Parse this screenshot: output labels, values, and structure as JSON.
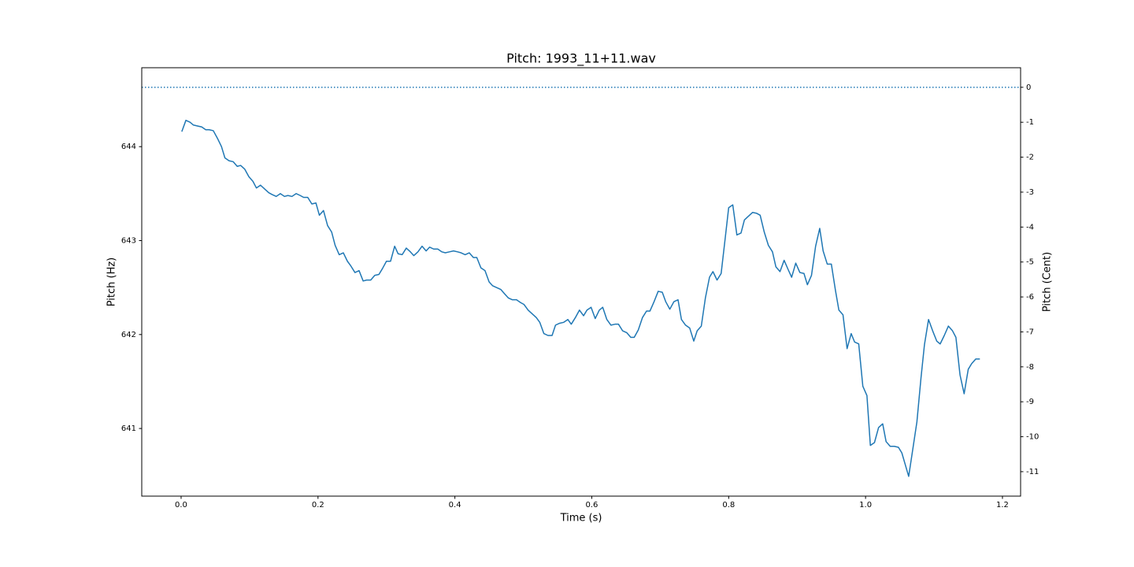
{
  "chart_data": {
    "type": "line",
    "title": "Pitch: 1993_11+11.wav",
    "x_label": "Time (s)",
    "y_label": "Pitch (Hz)",
    "y2_label": "Pitch (Cent)",
    "x": [
      0.001,
      0.007,
      0.013,
      0.018,
      0.024,
      0.03,
      0.036,
      0.041,
      0.047,
      0.053,
      0.059,
      0.064,
      0.07,
      0.076,
      0.082,
      0.087,
      0.093,
      0.099,
      0.105,
      0.11,
      0.116,
      0.122,
      0.128,
      0.133,
      0.139,
      0.145,
      0.151,
      0.156,
      0.162,
      0.168,
      0.174,
      0.179,
      0.185,
      0.191,
      0.197,
      0.202,
      0.208,
      0.214,
      0.22,
      0.225,
      0.231,
      0.237,
      0.243,
      0.248,
      0.254,
      0.26,
      0.266,
      0.271,
      0.277,
      0.283,
      0.289,
      0.294,
      0.3,
      0.306,
      0.312,
      0.317,
      0.323,
      0.329,
      0.335,
      0.34,
      0.346,
      0.352,
      0.358,
      0.363,
      0.369,
      0.375,
      0.381,
      0.386,
      0.392,
      0.398,
      0.404,
      0.409,
      0.415,
      0.421,
      0.427,
      0.432,
      0.438,
      0.444,
      0.45,
      0.455,
      0.461,
      0.467,
      0.473,
      0.478,
      0.484,
      0.49,
      0.496,
      0.501,
      0.507,
      0.513,
      0.519,
      0.524,
      0.53,
      0.536,
      0.542,
      0.547,
      0.553,
      0.559,
      0.565,
      0.57,
      0.576,
      0.582,
      0.588,
      0.593,
      0.599,
      0.605,
      0.611,
      0.616,
      0.622,
      0.628,
      0.634,
      0.639,
      0.645,
      0.651,
      0.657,
      0.662,
      0.668,
      0.674,
      0.68,
      0.685,
      0.691,
      0.697,
      0.703,
      0.708,
      0.714,
      0.72,
      0.726,
      0.731,
      0.737,
      0.743,
      0.749,
      0.754,
      0.76,
      0.766,
      0.772,
      0.777,
      0.783,
      0.789,
      0.795,
      0.8,
      0.806,
      0.812,
      0.818,
      0.823,
      0.829,
      0.835,
      0.841,
      0.846,
      0.852,
      0.858,
      0.864,
      0.869,
      0.875,
      0.881,
      0.887,
      0.892,
      0.898,
      0.904,
      0.91,
      0.915,
      0.921,
      0.927,
      0.933,
      0.938,
      0.944,
      0.95,
      0.956,
      0.961,
      0.967,
      0.973,
      0.979,
      0.984,
      0.99,
      0.996,
      1.002,
      1.007,
      1.013,
      1.019,
      1.025,
      1.03,
      1.036,
      1.042,
      1.048,
      1.053,
      1.063,
      1.069,
      1.075,
      1.081,
      1.086,
      1.092,
      1.098,
      1.104,
      1.109,
      1.115,
      1.121,
      1.127,
      1.132,
      1.138,
      1.144,
      1.15,
      1.155,
      1.161,
      1.167
    ],
    "series": [
      {
        "color": "#1f77b4",
        "values": [
          644.16,
          644.28,
          644.26,
          644.23,
          644.22,
          644.21,
          644.18,
          644.18,
          644.17,
          644.09,
          644.0,
          643.88,
          643.85,
          643.84,
          643.79,
          643.8,
          643.76,
          643.68,
          643.63,
          643.56,
          643.59,
          643.55,
          643.51,
          643.49,
          643.47,
          643.5,
          643.47,
          643.48,
          643.47,
          643.5,
          643.48,
          643.46,
          643.46,
          643.39,
          643.4,
          643.27,
          643.32,
          643.16,
          643.09,
          642.95,
          642.85,
          642.87,
          642.78,
          642.73,
          642.66,
          642.68,
          642.57,
          642.58,
          642.58,
          642.63,
          642.64,
          642.7,
          642.78,
          642.78,
          642.94,
          642.86,
          642.85,
          642.92,
          642.88,
          642.84,
          642.88,
          642.94,
          642.89,
          642.93,
          642.91,
          642.91,
          642.88,
          642.87,
          642.88,
          642.89,
          642.88,
          642.87,
          642.85,
          642.87,
          642.82,
          642.82,
          642.71,
          642.68,
          642.56,
          642.52,
          642.5,
          642.48,
          642.43,
          642.39,
          642.37,
          642.37,
          642.34,
          642.32,
          642.26,
          642.22,
          642.18,
          642.13,
          642.01,
          641.99,
          641.99,
          642.1,
          642.12,
          642.13,
          642.16,
          642.11,
          642.18,
          642.26,
          642.2,
          642.26,
          642.29,
          642.17,
          642.26,
          642.29,
          642.16,
          642.1,
          642.11,
          642.11,
          642.04,
          642.02,
          641.97,
          641.97,
          642.05,
          642.18,
          642.25,
          642.25,
          642.35,
          642.46,
          642.45,
          642.35,
          642.27,
          642.35,
          642.37,
          642.16,
          642.1,
          642.07,
          641.93,
          642.04,
          642.09,
          642.39,
          642.61,
          642.67,
          642.58,
          642.65,
          643.03,
          643.35,
          643.38,
          643.06,
          643.08,
          643.22,
          643.26,
          643.3,
          643.29,
          643.27,
          643.09,
          642.95,
          642.88,
          642.72,
          642.67,
          642.79,
          642.69,
          642.61,
          642.76,
          642.66,
          642.65,
          642.53,
          642.63,
          642.94,
          643.13,
          642.89,
          642.75,
          642.75,
          642.47,
          642.26,
          642.21,
          641.85,
          642.01,
          641.92,
          641.9,
          641.45,
          641.35,
          640.82,
          640.85,
          641.01,
          641.05,
          640.86,
          640.81,
          640.81,
          640.8,
          640.74,
          640.49,
          640.78,
          641.07,
          641.54,
          641.89,
          642.16,
          642.04,
          641.93,
          641.9,
          641.99,
          642.09,
          642.04,
          641.97,
          641.57,
          641.37,
          641.63,
          641.69,
          641.74,
          641.74
        ]
      }
    ],
    "hlines": [
      {
        "value": 0,
        "axis": "y2",
        "color": "#1f77b4",
        "style": "dotted"
      }
    ],
    "xlim": [
      -0.0575,
      1.2265
    ],
    "xticks": [
      {
        "value": 0,
        "label": "0.0"
      },
      0.2,
      0.4,
      0.6,
      0.8,
      {
        "value": 1,
        "label": "1.0"
      },
      1.2
    ],
    "ylim": [
      640.28,
      644.84
    ],
    "yticks": [
      641,
      642,
      643,
      644
    ],
    "y2lim": [
      -11.7,
      0.56
    ],
    "y2ticks": [
      0,
      -1,
      -2,
      -3,
      -4,
      -5,
      -6,
      -7,
      -8,
      -9,
      -10,
      -11
    ],
    "grid": false
  }
}
